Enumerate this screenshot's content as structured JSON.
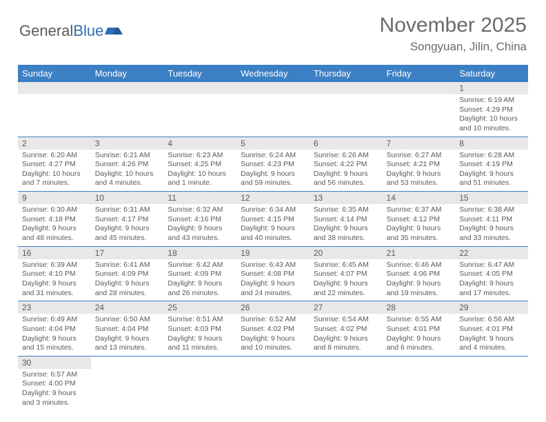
{
  "logo": {
    "text1": "General",
    "text2": "Blue"
  },
  "title": "November 2025",
  "location": "Songyuan, Jilin, China",
  "colors": {
    "header_bg": "#3b7fc4",
    "header_text": "#ffffff",
    "daynum_bg": "#e8e8e8",
    "border": "#3b7fc4",
    "text": "#5a5a5a"
  },
  "weekdays": [
    "Sunday",
    "Monday",
    "Tuesday",
    "Wednesday",
    "Thursday",
    "Friday",
    "Saturday"
  ],
  "weeks": [
    [
      null,
      null,
      null,
      null,
      null,
      null,
      {
        "n": "1",
        "sr": "6:19 AM",
        "ss": "4:29 PM",
        "dl": "10 hours and 10 minutes."
      }
    ],
    [
      {
        "n": "2",
        "sr": "6:20 AM",
        "ss": "4:27 PM",
        "dl": "10 hours and 7 minutes."
      },
      {
        "n": "3",
        "sr": "6:21 AM",
        "ss": "4:26 PM",
        "dl": "10 hours and 4 minutes."
      },
      {
        "n": "4",
        "sr": "6:23 AM",
        "ss": "4:25 PM",
        "dl": "10 hours and 1 minute."
      },
      {
        "n": "5",
        "sr": "6:24 AM",
        "ss": "4:23 PM",
        "dl": "9 hours and 59 minutes."
      },
      {
        "n": "6",
        "sr": "6:26 AM",
        "ss": "4:22 PM",
        "dl": "9 hours and 56 minutes."
      },
      {
        "n": "7",
        "sr": "6:27 AM",
        "ss": "4:21 PM",
        "dl": "9 hours and 53 minutes."
      },
      {
        "n": "8",
        "sr": "6:28 AM",
        "ss": "4:19 PM",
        "dl": "9 hours and 51 minutes."
      }
    ],
    [
      {
        "n": "9",
        "sr": "6:30 AM",
        "ss": "4:18 PM",
        "dl": "9 hours and 48 minutes."
      },
      {
        "n": "10",
        "sr": "6:31 AM",
        "ss": "4:17 PM",
        "dl": "9 hours and 45 minutes."
      },
      {
        "n": "11",
        "sr": "6:32 AM",
        "ss": "4:16 PM",
        "dl": "9 hours and 43 minutes."
      },
      {
        "n": "12",
        "sr": "6:34 AM",
        "ss": "4:15 PM",
        "dl": "9 hours and 40 minutes."
      },
      {
        "n": "13",
        "sr": "6:35 AM",
        "ss": "4:14 PM",
        "dl": "9 hours and 38 minutes."
      },
      {
        "n": "14",
        "sr": "6:37 AM",
        "ss": "4:12 PM",
        "dl": "9 hours and 35 minutes."
      },
      {
        "n": "15",
        "sr": "6:38 AM",
        "ss": "4:11 PM",
        "dl": "9 hours and 33 minutes."
      }
    ],
    [
      {
        "n": "16",
        "sr": "6:39 AM",
        "ss": "4:10 PM",
        "dl": "9 hours and 31 minutes."
      },
      {
        "n": "17",
        "sr": "6:41 AM",
        "ss": "4:09 PM",
        "dl": "9 hours and 28 minutes."
      },
      {
        "n": "18",
        "sr": "6:42 AM",
        "ss": "4:09 PM",
        "dl": "9 hours and 26 minutes."
      },
      {
        "n": "19",
        "sr": "6:43 AM",
        "ss": "4:08 PM",
        "dl": "9 hours and 24 minutes."
      },
      {
        "n": "20",
        "sr": "6:45 AM",
        "ss": "4:07 PM",
        "dl": "9 hours and 22 minutes."
      },
      {
        "n": "21",
        "sr": "6:46 AM",
        "ss": "4:06 PM",
        "dl": "9 hours and 19 minutes."
      },
      {
        "n": "22",
        "sr": "6:47 AM",
        "ss": "4:05 PM",
        "dl": "9 hours and 17 minutes."
      }
    ],
    [
      {
        "n": "23",
        "sr": "6:49 AM",
        "ss": "4:04 PM",
        "dl": "9 hours and 15 minutes."
      },
      {
        "n": "24",
        "sr": "6:50 AM",
        "ss": "4:04 PM",
        "dl": "9 hours and 13 minutes."
      },
      {
        "n": "25",
        "sr": "6:51 AM",
        "ss": "4:03 PM",
        "dl": "9 hours and 11 minutes."
      },
      {
        "n": "26",
        "sr": "6:52 AM",
        "ss": "4:02 PM",
        "dl": "9 hours and 10 minutes."
      },
      {
        "n": "27",
        "sr": "6:54 AM",
        "ss": "4:02 PM",
        "dl": "9 hours and 8 minutes."
      },
      {
        "n": "28",
        "sr": "6:55 AM",
        "ss": "4:01 PM",
        "dl": "9 hours and 6 minutes."
      },
      {
        "n": "29",
        "sr": "6:56 AM",
        "ss": "4:01 PM",
        "dl": "9 hours and 4 minutes."
      }
    ],
    [
      {
        "n": "30",
        "sr": "6:57 AM",
        "ss": "4:00 PM",
        "dl": "9 hours and 3 minutes."
      },
      null,
      null,
      null,
      null,
      null,
      null
    ]
  ],
  "labels": {
    "sunrise": "Sunrise:",
    "sunset": "Sunset:",
    "daylight": "Daylight:"
  }
}
